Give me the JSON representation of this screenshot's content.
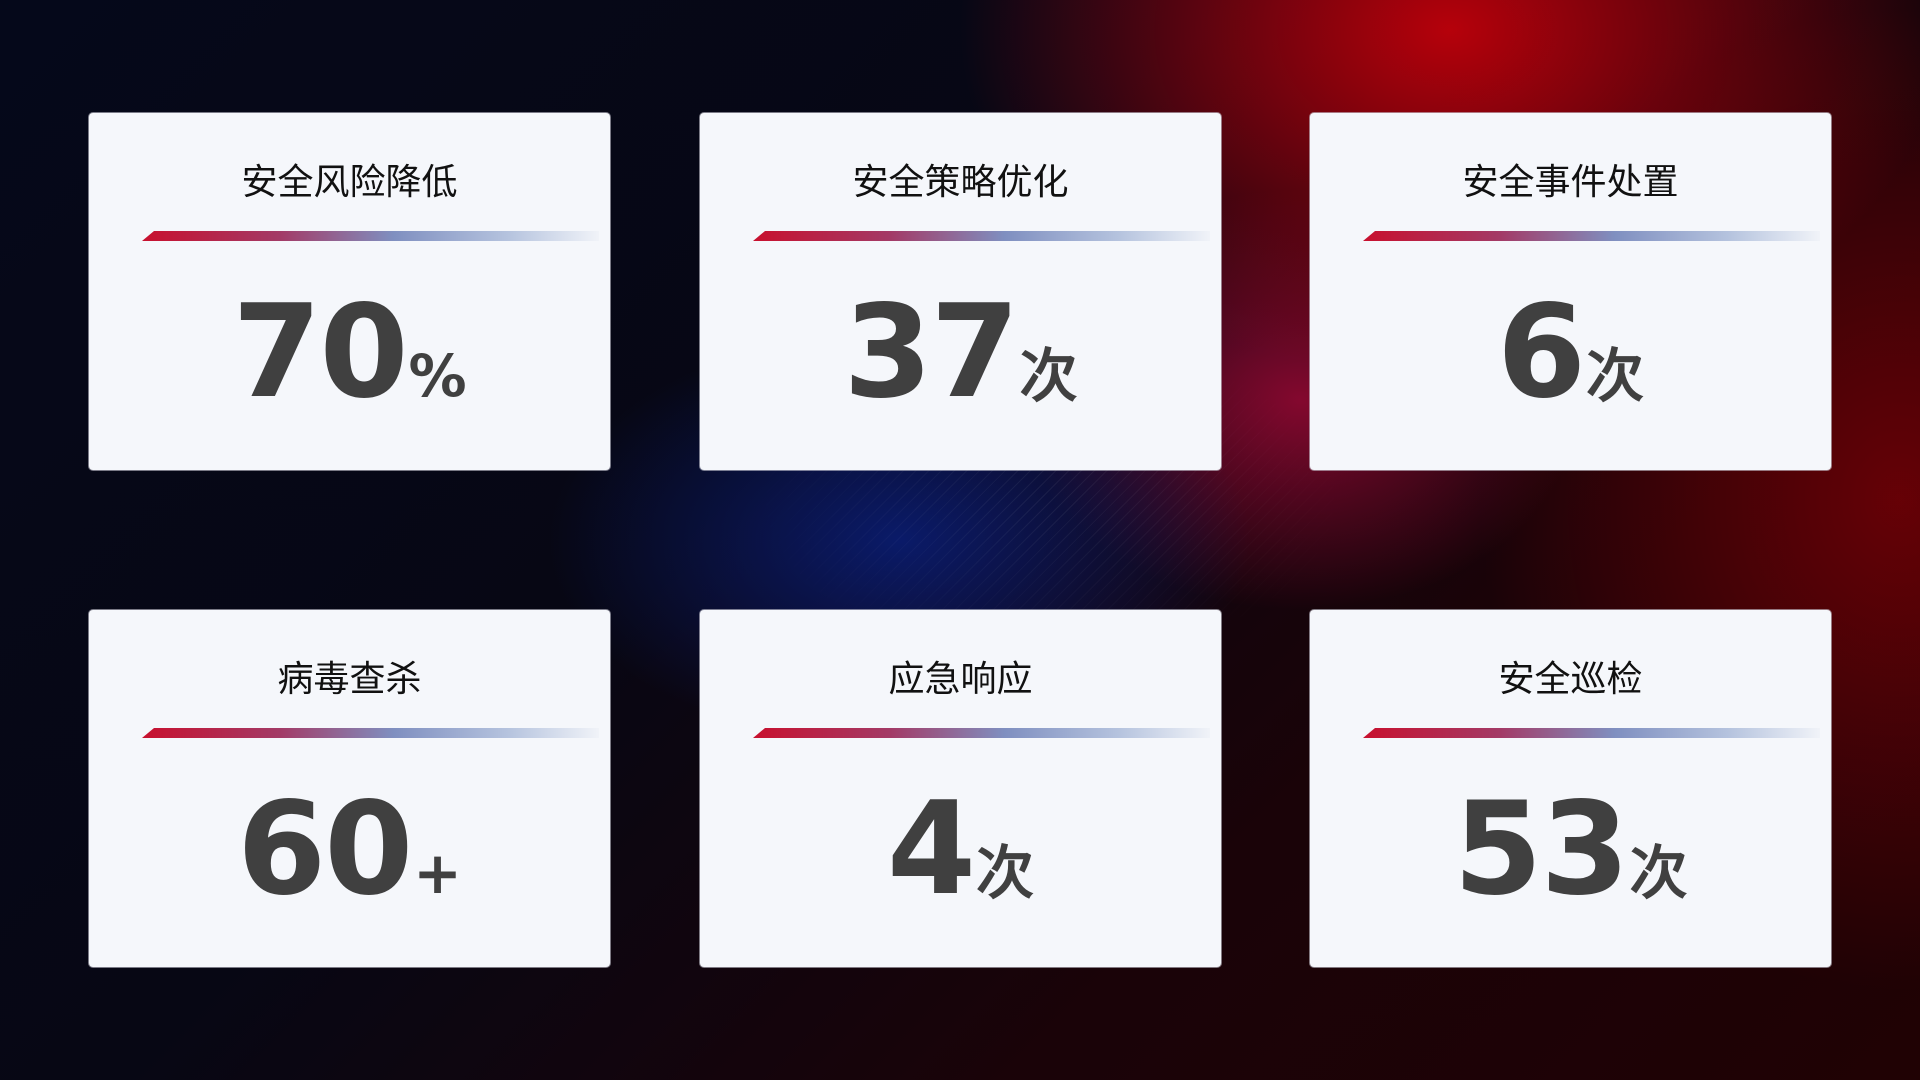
{
  "cards": [
    {
      "title": "安全风险降低",
      "value": "70",
      "unit": "%"
    },
    {
      "title": "安全策略优化",
      "value": "37",
      "unit": "次"
    },
    {
      "title": "安全事件处置",
      "value": "6",
      "unit": "次"
    },
    {
      "title": "病毒查杀",
      "value": "60",
      "unit": "+"
    },
    {
      "title": "应急响应",
      "value": "4",
      "unit": "次"
    },
    {
      "title": "安全巡检",
      "value": "53",
      "unit": "次"
    }
  ],
  "colors": {
    "accent_red": "#c8102e",
    "accent_blue": "#7f8fc0",
    "card_bg": "#f5f7fb",
    "value_text": "#404040"
  }
}
